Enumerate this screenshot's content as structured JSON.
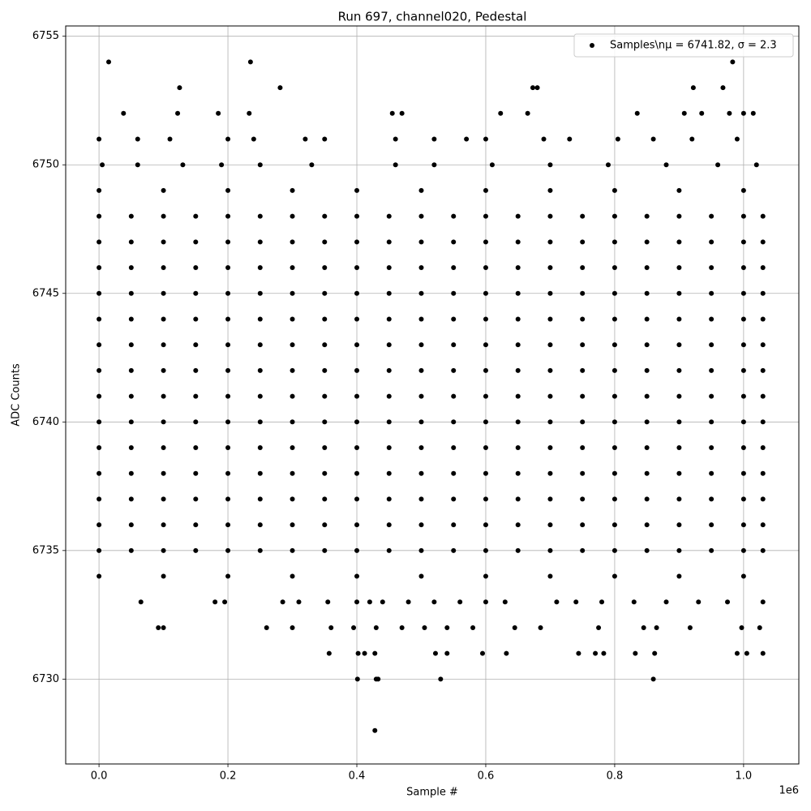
{
  "chart_data": {
    "type": "scatter",
    "title": "Run 697, channel020, Pedestal",
    "x_label": "Sample #",
    "y_label": "ADC Counts",
    "x_offset_label": "1e6",
    "xlim": [
      -51700,
      1085700
    ],
    "ylim": [
      6726.7,
      6755.4
    ],
    "xticks": [
      {
        "value": 0,
        "label": "0.0"
      },
      {
        "value": 200000,
        "label": "0.2"
      },
      {
        "value": 400000,
        "label": "0.4"
      },
      {
        "value": 600000,
        "label": "0.6"
      },
      {
        "value": 800000,
        "label": "0.8"
      },
      {
        "value": 1000000,
        "label": "1.0"
      }
    ],
    "yticks": [
      6730,
      6735,
      6740,
      6745,
      6750,
      6755
    ],
    "grid": true,
    "legend": "upper right",
    "x": [
      0,
      50000,
      100000,
      150000,
      200000,
      250000,
      300000,
      350000,
      400000,
      450000,
      500000,
      550000,
      600000,
      650000,
      700000,
      750000,
      800000,
      850000,
      900000,
      950000,
      1000000,
      1030000,
      0,
      50000,
      100000,
      150000,
      200000,
      250000,
      300000,
      350000,
      400000,
      450000,
      500000,
      550000,
      600000,
      650000,
      700000,
      750000,
      800000,
      850000,
      900000,
      950000,
      1000000,
      1030000,
      0,
      50000,
      100000,
      150000,
      200000,
      250000,
      300000,
      350000,
      400000,
      450000,
      500000,
      550000,
      600000,
      650000,
      700000,
      750000,
      800000,
      850000,
      900000,
      950000,
      1000000,
      1030000,
      0,
      50000,
      100000,
      150000,
      200000,
      250000,
      300000,
      350000,
      400000,
      450000,
      500000,
      550000,
      600000,
      650000,
      700000,
      750000,
      800000,
      850000,
      900000,
      950000,
      1000000,
      1030000,
      0,
      50000,
      100000,
      150000,
      200000,
      250000,
      300000,
      350000,
      400000,
      450000,
      500000,
      550000,
      600000,
      650000,
      700000,
      750000,
      800000,
      850000,
      900000,
      950000,
      1000000,
      1030000,
      0,
      50000,
      100000,
      150000,
      200000,
      250000,
      300000,
      350000,
      400000,
      450000,
      500000,
      550000,
      600000,
      650000,
      700000,
      750000,
      800000,
      850000,
      900000,
      950000,
      1000000,
      1030000,
      0,
      50000,
      100000,
      150000,
      200000,
      250000,
      300000,
      350000,
      400000,
      450000,
      500000,
      550000,
      600000,
      650000,
      700000,
      750000,
      800000,
      850000,
      900000,
      950000,
      1000000,
      1030000,
      0,
      50000,
      100000,
      150000,
      200000,
      250000,
      300000,
      350000,
      400000,
      450000,
      500000,
      550000,
      600000,
      650000,
      700000,
      750000,
      800000,
      850000,
      900000,
      950000,
      1000000,
      1030000,
      0,
      50000,
      100000,
      150000,
      200000,
      250000,
      300000,
      350000,
      400000,
      450000,
      500000,
      550000,
      600000,
      650000,
      700000,
      750000,
      800000,
      850000,
      900000,
      950000,
      1000000,
      1030000,
      0,
      50000,
      100000,
      150000,
      200000,
      250000,
      300000,
      350000,
      400000,
      450000,
      500000,
      550000,
      600000,
      650000,
      700000,
      750000,
      800000,
      850000,
      900000,
      950000,
      1000000,
      1030000,
      0,
      50000,
      100000,
      150000,
      200000,
      250000,
      300000,
      350000,
      400000,
      450000,
      500000,
      550000,
      600000,
      650000,
      700000,
      750000,
      800000,
      850000,
      900000,
      950000,
      1000000,
      1030000,
      0,
      50000,
      100000,
      150000,
      200000,
      250000,
      300000,
      350000,
      400000,
      450000,
      500000,
      550000,
      600000,
      650000,
      700000,
      750000,
      800000,
      850000,
      900000,
      950000,
      1000000,
      1030000,
      0,
      50000,
      100000,
      150000,
      200000,
      250000,
      300000,
      350000,
      400000,
      450000,
      500000,
      550000,
      600000,
      650000,
      700000,
      750000,
      800000,
      850000,
      900000,
      950000,
      1000000,
      1030000,
      0,
      50000,
      100000,
      150000,
      200000,
      250000,
      300000,
      350000,
      400000,
      450000,
      500000,
      550000,
      600000,
      650000,
      700000,
      750000,
      800000,
      850000,
      900000,
      950000,
      1000000,
      1030000,
      0,
      100000,
      200000,
      300000,
      400000,
      500000,
      600000,
      700000,
      800000,
      900000,
      1000000,
      0,
      100000,
      200000,
      300000,
      400000,
      500000,
      600000,
      700000,
      800000,
      900000,
      1000000,
      5000,
      60000,
      130000,
      190000,
      250000,
      330000,
      460000,
      520000,
      610000,
      700000,
      790000,
      880000,
      960000,
      1020000,
      15000,
      235000,
      983000,
      125000,
      281000,
      673000,
      680000,
      922000,
      968000,
      38000,
      122000,
      185000,
      233000,
      455000,
      470000,
      623000,
      665000,
      835000,
      908000,
      935000,
      978000,
      1000000,
      1015000,
      0,
      60000,
      110000,
      200000,
      240000,
      320000,
      350000,
      460000,
      520000,
      570000,
      600000,
      690000,
      730000,
      805000,
      860000,
      920000,
      990000,
      65000,
      180000,
      195000,
      285000,
      310000,
      355000,
      400000,
      420000,
      440000,
      480000,
      520000,
      560000,
      600000,
      630000,
      710000,
      740000,
      780000,
      830000,
      880000,
      930000,
      975000,
      1030000,
      92000,
      100000,
      260000,
      300000,
      360000,
      395000,
      430000,
      470000,
      505000,
      540000,
      580000,
      645000,
      685000,
      775000,
      845000,
      865000,
      917000,
      997000,
      1025000,
      357000,
      402000,
      412000,
      428000,
      522000,
      540000,
      595000,
      632000,
      744000,
      770000,
      783000,
      832000,
      862000,
      990000,
      1005000,
      1030000,
      401000,
      430000,
      433000,
      530000,
      860000,
      428000
    ],
    "series": [
      {
        "name": "Samples\\nμ = 6741.82, σ = 2.3",
        "color": "#000000",
        "values": [
          6735,
          6735,
          6735,
          6735,
          6735,
          6735,
          6735,
          6735,
          6735,
          6735,
          6735,
          6735,
          6735,
          6735,
          6735,
          6735,
          6735,
          6735,
          6735,
          6735,
          6735,
          6735,
          6736,
          6736,
          6736,
          6736,
          6736,
          6736,
          6736,
          6736,
          6736,
          6736,
          6736,
          6736,
          6736,
          6736,
          6736,
          6736,
          6736,
          6736,
          6736,
          6736,
          6736,
          6736,
          6737,
          6737,
          6737,
          6737,
          6737,
          6737,
          6737,
          6737,
          6737,
          6737,
          6737,
          6737,
          6737,
          6737,
          6737,
          6737,
          6737,
          6737,
          6737,
          6737,
          6737,
          6737,
          6738,
          6738,
          6738,
          6738,
          6738,
          6738,
          6738,
          6738,
          6738,
          6738,
          6738,
          6738,
          6738,
          6738,
          6738,
          6738,
          6738,
          6738,
          6738,
          6738,
          6738,
          6738,
          6739,
          6739,
          6739,
          6739,
          6739,
          6739,
          6739,
          6739,
          6739,
          6739,
          6739,
          6739,
          6739,
          6739,
          6739,
          6739,
          6739,
          6739,
          6739,
          6739,
          6739,
          6739,
          6740,
          6740,
          6740,
          6740,
          6740,
          6740,
          6740,
          6740,
          6740,
          6740,
          6740,
          6740,
          6740,
          6740,
          6740,
          6740,
          6740,
          6740,
          6740,
          6740,
          6740,
          6740,
          6741,
          6741,
          6741,
          6741,
          6741,
          6741,
          6741,
          6741,
          6741,
          6741,
          6741,
          6741,
          6741,
          6741,
          6741,
          6741,
          6741,
          6741,
          6741,
          6741,
          6741,
          6741,
          6742,
          6742,
          6742,
          6742,
          6742,
          6742,
          6742,
          6742,
          6742,
          6742,
          6742,
          6742,
          6742,
          6742,
          6742,
          6742,
          6742,
          6742,
          6742,
          6742,
          6742,
          6742,
          6743,
          6743,
          6743,
          6743,
          6743,
          6743,
          6743,
          6743,
          6743,
          6743,
          6743,
          6743,
          6743,
          6743,
          6743,
          6743,
          6743,
          6743,
          6743,
          6743,
          6743,
          6743,
          6744,
          6744,
          6744,
          6744,
          6744,
          6744,
          6744,
          6744,
          6744,
          6744,
          6744,
          6744,
          6744,
          6744,
          6744,
          6744,
          6744,
          6744,
          6744,
          6744,
          6744,
          6744,
          6745,
          6745,
          6745,
          6745,
          6745,
          6745,
          6745,
          6745,
          6745,
          6745,
          6745,
          6745,
          6745,
          6745,
          6745,
          6745,
          6745,
          6745,
          6745,
          6745,
          6745,
          6745,
          6746,
          6746,
          6746,
          6746,
          6746,
          6746,
          6746,
          6746,
          6746,
          6746,
          6746,
          6746,
          6746,
          6746,
          6746,
          6746,
          6746,
          6746,
          6746,
          6746,
          6746,
          6746,
          6747,
          6747,
          6747,
          6747,
          6747,
          6747,
          6747,
          6747,
          6747,
          6747,
          6747,
          6747,
          6747,
          6747,
          6747,
          6747,
          6747,
          6747,
          6747,
          6747,
          6747,
          6747,
          6748,
          6748,
          6748,
          6748,
          6748,
          6748,
          6748,
          6748,
          6748,
          6748,
          6748,
          6748,
          6748,
          6748,
          6748,
          6748,
          6748,
          6748,
          6748,
          6748,
          6748,
          6748,
          6734,
          6734,
          6734,
          6734,
          6734,
          6734,
          6734,
          6734,
          6734,
          6734,
          6734,
          6749,
          6749,
          6749,
          6749,
          6749,
          6749,
          6749,
          6749,
          6749,
          6749,
          6749,
          6750,
          6750,
          6750,
          6750,
          6750,
          6750,
          6750,
          6750,
          6750,
          6750,
          6750,
          6750,
          6750,
          6750,
          6754,
          6754,
          6754,
          6753,
          6753,
          6753,
          6753,
          6753,
          6753,
          6752,
          6752,
          6752,
          6752,
          6752,
          6752,
          6752,
          6752,
          6752,
          6752,
          6752,
          6752,
          6752,
          6752,
          6751,
          6751,
          6751,
          6751,
          6751,
          6751,
          6751,
          6751,
          6751,
          6751,
          6751,
          6751,
          6751,
          6751,
          6751,
          6751,
          6751,
          6733,
          6733,
          6733,
          6733,
          6733,
          6733,
          6733,
          6733,
          6733,
          6733,
          6733,
          6733,
          6733,
          6733,
          6733,
          6733,
          6733,
          6733,
          6733,
          6733,
          6733,
          6733,
          6732,
          6732,
          6732,
          6732,
          6732,
          6732,
          6732,
          6732,
          6732,
          6732,
          6732,
          6732,
          6732,
          6732,
          6732,
          6732,
          6732,
          6732,
          6732,
          6731,
          6731,
          6731,
          6731,
          6731,
          6731,
          6731,
          6731,
          6731,
          6731,
          6731,
          6731,
          6731,
          6731,
          6731,
          6731,
          6730,
          6730,
          6730,
          6730,
          6730,
          6728
        ]
      }
    ]
  }
}
